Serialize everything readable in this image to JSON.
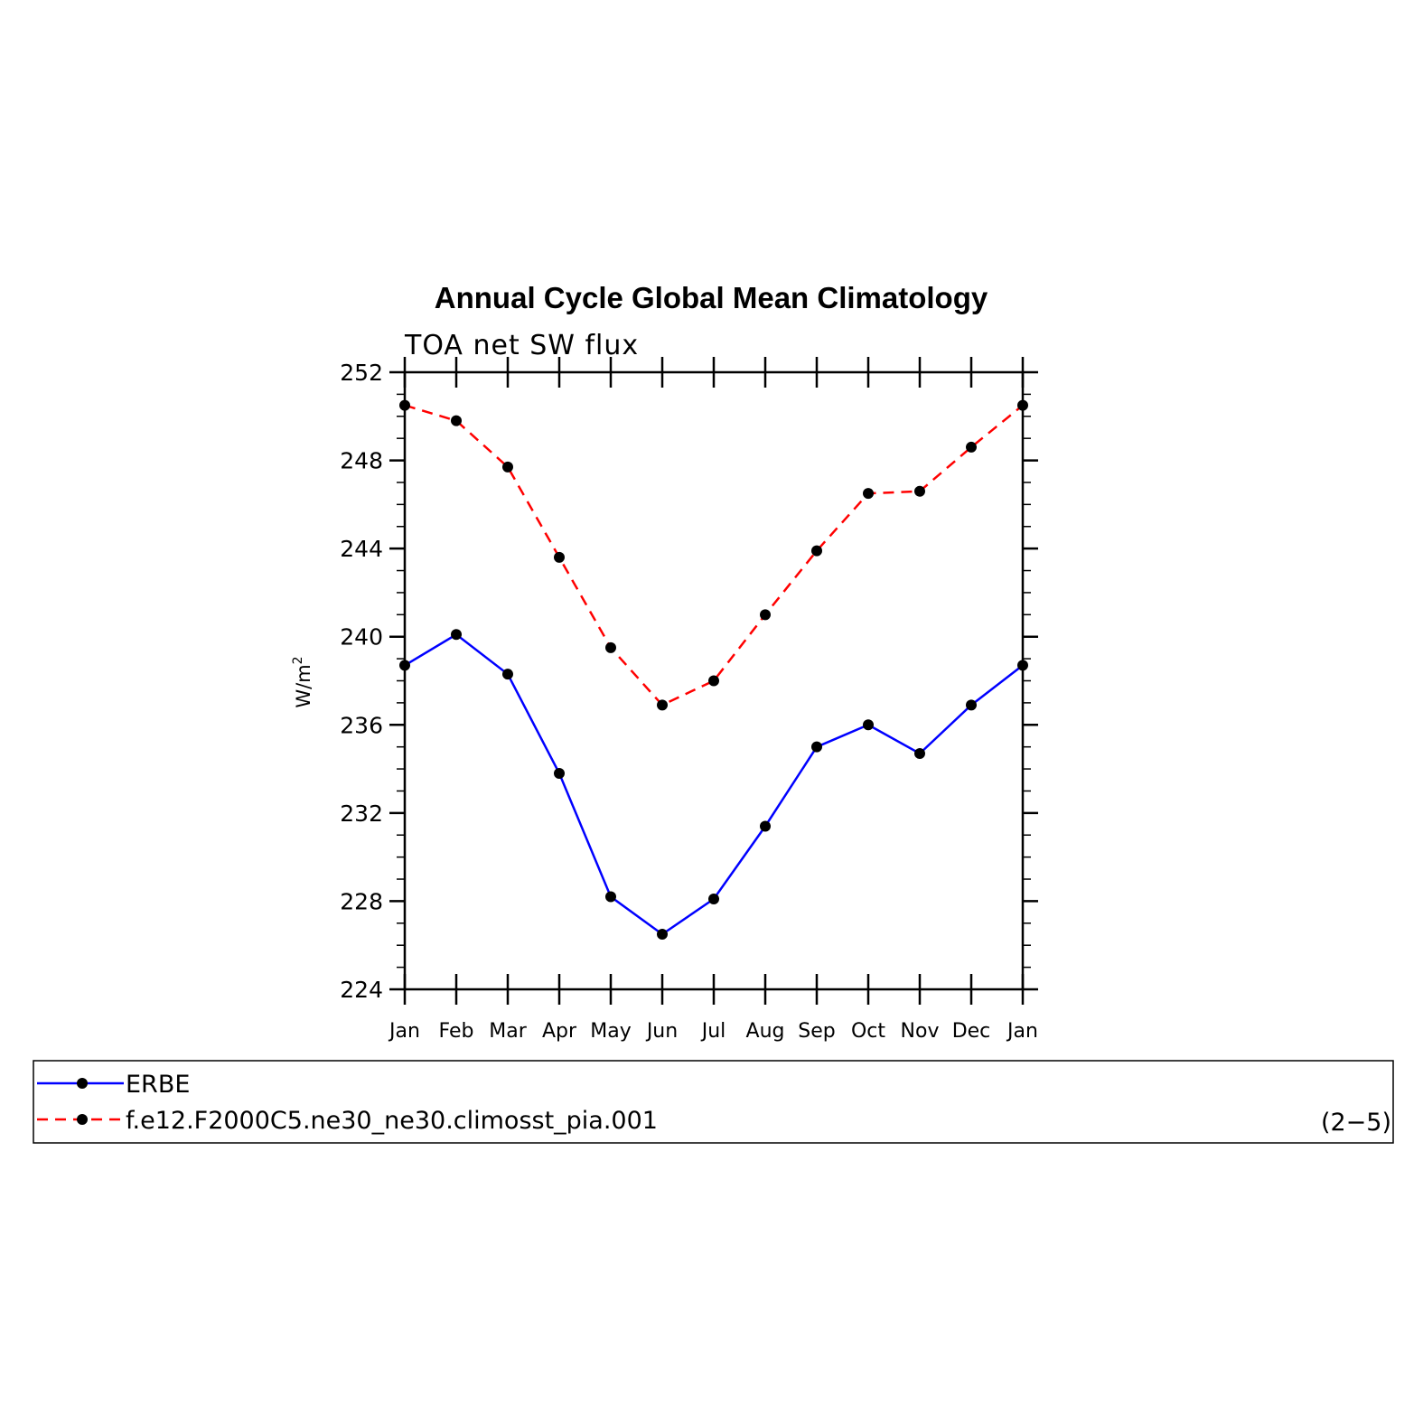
{
  "chart_data": {
    "type": "line",
    "title": "Annual Cycle Global Mean Climatology",
    "subtitle": "TOA net SW flux",
    "ylabel_base": "W/m",
    "ylabel_sup": "2",
    "categories": [
      "Jan",
      "Feb",
      "Mar",
      "Apr",
      "May",
      "Jun",
      "Jul",
      "Aug",
      "Sep",
      "Oct",
      "Nov",
      "Dec",
      "Jan"
    ],
    "ylim": [
      224,
      252
    ],
    "yticks": [
      224,
      228,
      232,
      236,
      240,
      244,
      248,
      252
    ],
    "grid": false,
    "series": [
      {
        "name": "ERBE",
        "color": "#0000ff",
        "dashed": false,
        "values": [
          238.7,
          240.1,
          238.3,
          233.8,
          228.2,
          226.5,
          228.1,
          231.4,
          235.0,
          236.0,
          234.7,
          236.9,
          238.7
        ]
      },
      {
        "name": "f.e12.F2000C5.ne30_ne30.climosst_pia.001",
        "color": "#ff0000",
        "dashed": true,
        "values": [
          250.5,
          249.8,
          247.7,
          243.6,
          239.5,
          236.9,
          238.0,
          241.0,
          243.9,
          246.5,
          246.6,
          248.6,
          250.5
        ]
      }
    ],
    "legend_placement": "bottom",
    "panel_label": "(2−5)"
  }
}
